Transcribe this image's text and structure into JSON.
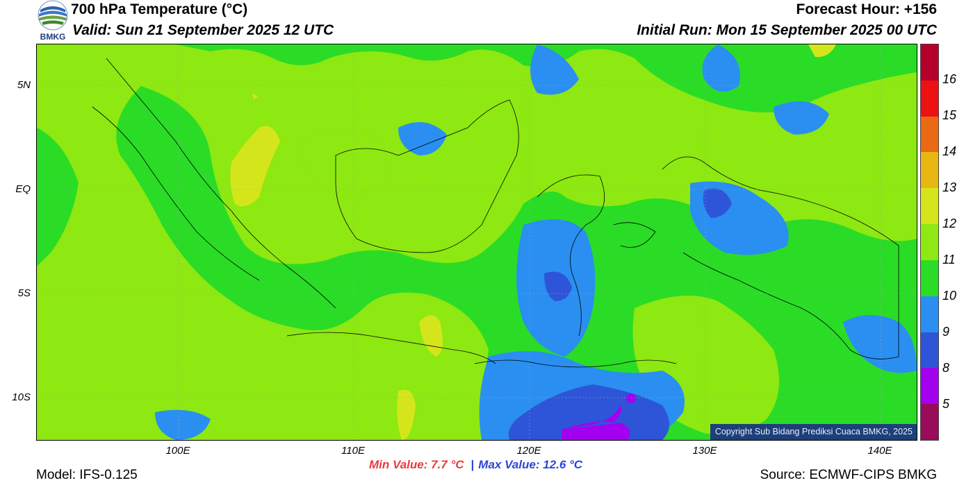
{
  "header": {
    "title": "700 hPa Temperature (°C)",
    "valid": "Valid: Sun 21 September 2025 12 UTC",
    "forecast_hour": "Forecast Hour: +156",
    "initial_run": "Initial Run: Mon 15 September 2025 00 UTC",
    "logo_text": "BMKG"
  },
  "map": {
    "lat_labels": [
      "5N",
      "EQ",
      "5S",
      "10S"
    ],
    "lon_labels": [
      "100E",
      "110E",
      "120E",
      "130E",
      "140E"
    ],
    "copyright": "Copyright Sub Bidang Prediksi Cuaca BMKG, 2025",
    "colors": {
      "c12": "#8ee811",
      "c11": "#2adc26",
      "c10": "#2a8ff0",
      "c9": "#2e55d8",
      "c8": "#a300f0",
      "c13": "#d4e61b"
    }
  },
  "colorbar": {
    "labels": [
      "16",
      "15",
      "14",
      "13",
      "12",
      "11",
      "10",
      "9",
      "8",
      "5"
    ],
    "colors": [
      "#b4002a",
      "#ee1111",
      "#e96a12",
      "#e8b712",
      "#d4e61b",
      "#8ee811",
      "#2adc26",
      "#2a8ff0",
      "#2e55d8",
      "#a300f0",
      "#980c5a"
    ]
  },
  "footer": {
    "model": "Model: IFS-0.125",
    "min_value": "Min Value: 7.7 °C",
    "separator": "|",
    "max_value": "Max Value: 12.6 °C",
    "source": "Source: ECMWF-CIPS BMKG"
  }
}
